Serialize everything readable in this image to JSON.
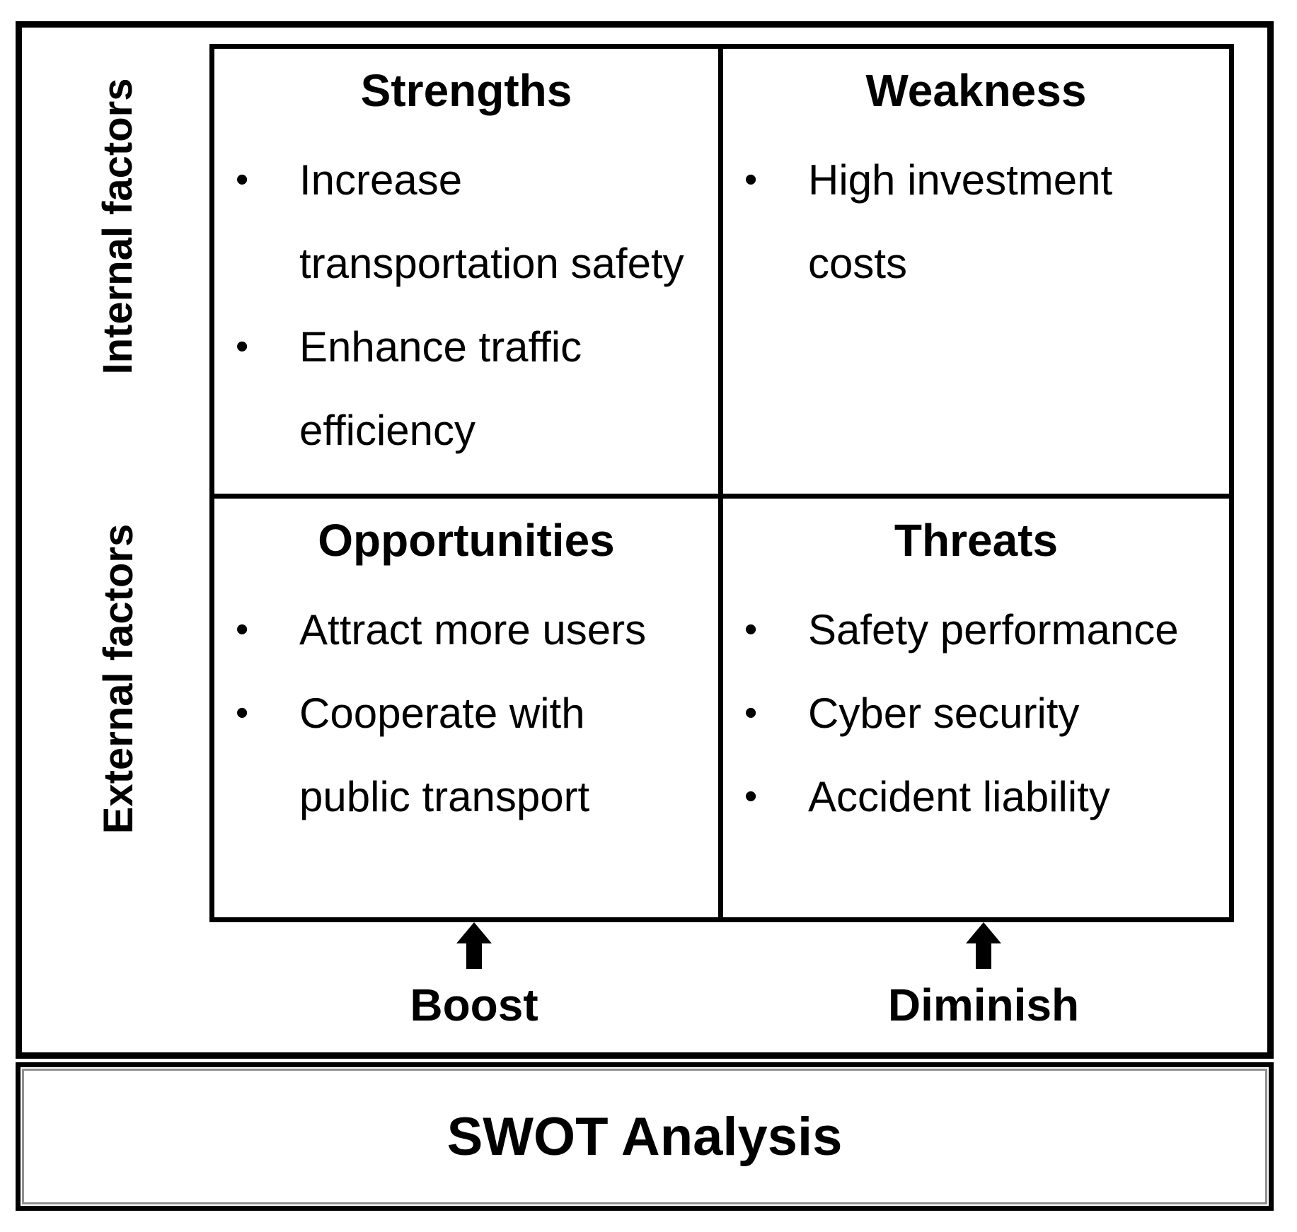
{
  "matrix": {
    "side_labels": {
      "internal": "Internal factors",
      "external": "External factors"
    },
    "quadrants": [
      {
        "id": "strengths",
        "title": "Strengths",
        "lines": [
          {
            "marker": "•",
            "text": "Increase"
          },
          {
            "marker": "",
            "text": "transportation safety"
          },
          {
            "marker": "•",
            "text": "Enhance traffic"
          },
          {
            "marker": "",
            "text": "efficiency"
          }
        ]
      },
      {
        "id": "weakness",
        "title": "Weakness",
        "lines": [
          {
            "marker": "•",
            "text": "High investment"
          },
          {
            "marker": "",
            "text": "costs"
          }
        ]
      },
      {
        "id": "opportunities",
        "title": "Opportunities",
        "lines": [
          {
            "marker": "•",
            "text": "Attract more users"
          },
          {
            "marker": "•",
            "text": "Cooperate with"
          },
          {
            "marker": "",
            "text": "public transport"
          }
        ]
      },
      {
        "id": "threats",
        "title": "Threats",
        "lines": [
          {
            "marker": "•",
            "text": "Safety performance"
          },
          {
            "marker": "•",
            "text": "Cyber security"
          },
          {
            "marker": "•",
            "text": "Accident liability"
          }
        ]
      }
    ],
    "arrows": [
      {
        "id": "boost",
        "label": "Boost"
      },
      {
        "id": "diminish",
        "label": "Diminish"
      }
    ]
  },
  "banner": {
    "title": "SWOT Analysis"
  },
  "colors": {
    "ink": "#000000",
    "background": "#ffffff",
    "banner_inner_border": "#8f8f8f"
  }
}
